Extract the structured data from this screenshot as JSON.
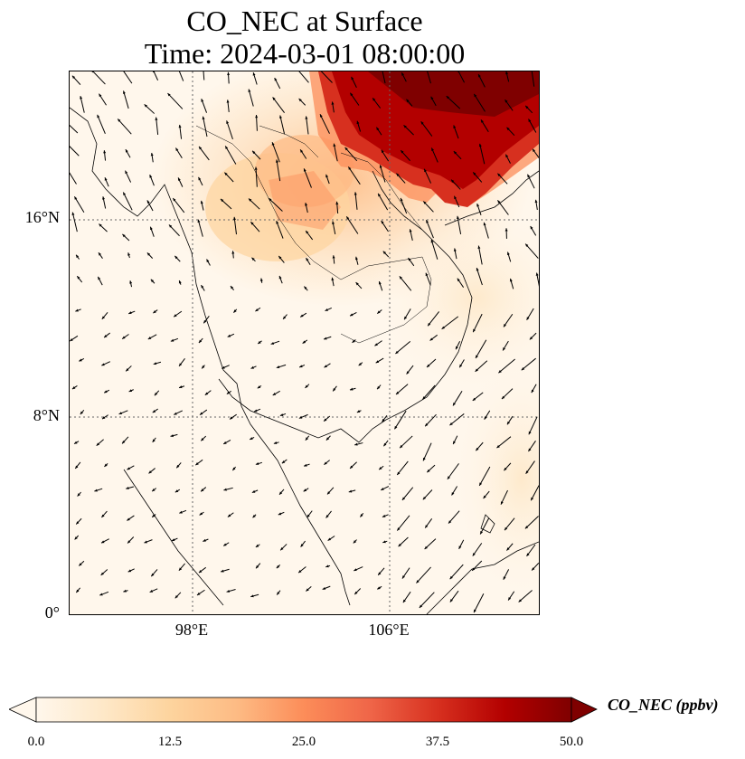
{
  "title": {
    "line1": "CO_NEC at Surface",
    "line2": "Time: 2024-03-01 08:00:00"
  },
  "map": {
    "lat_labels": [
      "16°N",
      "8°N",
      "0°"
    ],
    "lon_labels": [
      "98°E",
      "106°E"
    ],
    "lat_range": [
      0,
      22
    ],
    "lon_range": [
      93,
      112
    ],
    "gridlines": true,
    "field": "CO_NEC",
    "wind_vectors": true,
    "high_concentration_region": "northern Vietnam / Laos / southern China"
  },
  "colorbar": {
    "label": "CO_NEC (ppbv)",
    "ticks": [
      "0.0",
      "12.5",
      "25.0",
      "37.5",
      "50.0"
    ],
    "min": 0,
    "max": 50,
    "extend": "both",
    "colors": [
      "#fff7ec",
      "#fee8c8",
      "#fdd49e",
      "#fdbb84",
      "#fc8d59",
      "#ef6548",
      "#d7301f",
      "#b30000",
      "#7f0000"
    ]
  }
}
